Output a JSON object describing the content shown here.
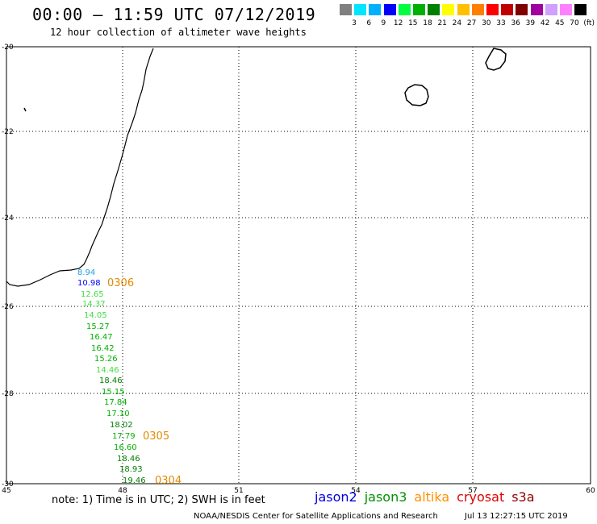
{
  "header": {
    "title": "00:00 – 11:59 UTC 07/12/2019",
    "subtitle": "12 hour collection of altimeter wave heights"
  },
  "legend": {
    "colors": [
      "#808080",
      "#00e5ff",
      "#00b0ff",
      "#0000ff",
      "#00ff40",
      "#00b000",
      "#008000",
      "#ffff00",
      "#ffc000",
      "#ff8000",
      "#ff0000",
      "#c00000",
      "#800000",
      "#a000a0",
      "#d0a0ff",
      "#ff80ff",
      "#000000"
    ],
    "labels": [
      "3",
      "6",
      "9",
      "12",
      "15",
      "18",
      "21",
      "24",
      "27",
      "30",
      "33",
      "36",
      "39",
      "42",
      "45",
      "70",
      "(ft)"
    ]
  },
  "axes": {
    "lat_labels": [
      "-20",
      "-22",
      "-24",
      "-26",
      "-28",
      "-30"
    ],
    "lon_labels": [
      "45",
      "48",
      "51",
      "54",
      "57",
      "60"
    ]
  },
  "observations": [
    {
      "value": "8.94",
      "color": "#1ea0e0"
    },
    {
      "value": "10.98",
      "color": "#0000ff"
    },
    {
      "value": "12.65",
      "color": "#40e040"
    },
    {
      "value": "14.37",
      "color": "#40e040"
    },
    {
      "value": "14.05",
      "color": "#40e040"
    },
    {
      "value": "15.27",
      "color": "#00b000"
    },
    {
      "value": "16.47",
      "color": "#00b000"
    },
    {
      "value": "16.42",
      "color": "#00b000"
    },
    {
      "value": "15.26",
      "color": "#00b000"
    },
    {
      "value": "14.46",
      "color": "#40e040"
    },
    {
      "value": "18.46",
      "color": "#008000"
    },
    {
      "value": "15.15",
      "color": "#00b000"
    },
    {
      "value": "17.84",
      "color": "#00b000"
    },
    {
      "value": "17.10",
      "color": "#00b000"
    },
    {
      "value": "18.02",
      "color": "#008000"
    },
    {
      "value": "17.79",
      "color": "#00b000"
    },
    {
      "value": "16.60",
      "color": "#00b000"
    },
    {
      "value": "18.46",
      "color": "#008000"
    },
    {
      "value": "18.93",
      "color": "#008000"
    },
    {
      "value": "19.46",
      "color": "#008000"
    }
  ],
  "time_marks": [
    "0306",
    "0305",
    "0304"
  ],
  "note": "note: 1) Time is in UTC; 2) SWH is in feet",
  "satellites": [
    {
      "name": "jason2",
      "color": "#0000e0"
    },
    {
      "name": "jason3",
      "color": "#009000"
    },
    {
      "name": "altika",
      "color": "#ff9000"
    },
    {
      "name": "cryosat",
      "color": "#e00000"
    },
    {
      "name": "s3a",
      "color": "#900000"
    }
  ],
  "footer": "NOAA/NESDIS Center for Satellite Applications and Research",
  "timestamp": "Jul 13 12:27:15 UTC 2019"
}
